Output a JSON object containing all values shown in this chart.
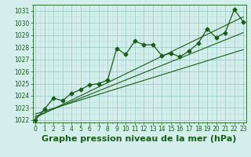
{
  "title": "Graphe pression niveau de la mer (hPa)",
  "x_values": [
    0,
    1,
    2,
    3,
    4,
    5,
    6,
    7,
    8,
    9,
    10,
    11,
    12,
    13,
    14,
    15,
    16,
    17,
    18,
    19,
    20,
    21,
    22,
    23
  ],
  "y_values": [
    1022.0,
    1022.9,
    1023.8,
    1023.6,
    1024.2,
    1024.5,
    1024.9,
    1025.0,
    1025.3,
    1027.9,
    1027.4,
    1028.5,
    1028.2,
    1028.2,
    1027.3,
    1027.5,
    1027.2,
    1027.7,
    1028.3,
    1029.5,
    1028.8,
    1029.2,
    1031.1,
    1030.1
  ],
  "trend1_x": [
    0,
    23
  ],
  "trend1_y": [
    1022.2,
    1030.5
  ],
  "trend2_x": [
    0,
    23
  ],
  "trend2_y": [
    1022.5,
    1027.8
  ],
  "trend3_x": [
    0,
    23
  ],
  "trend3_y": [
    1022.3,
    1029.2
  ],
  "ylim": [
    1021.8,
    1031.5
  ],
  "yticks": [
    1022,
    1023,
    1024,
    1025,
    1026,
    1027,
    1028,
    1029,
    1030,
    1031
  ],
  "xticks": [
    0,
    1,
    2,
    3,
    4,
    5,
    6,
    7,
    8,
    9,
    10,
    11,
    12,
    13,
    14,
    15,
    16,
    17,
    18,
    19,
    20,
    21,
    22,
    23
  ],
  "line_color": "#1a5c1a",
  "bg_color": "#d4eeeb",
  "grid_major_color": "#9eccc8",
  "grid_minor_color": "#b8ddd9",
  "title_fontsize": 8.5,
  "marker": "D",
  "marker_size": 2.5,
  "tick_fontsize": 5.5,
  "xlabel_fontsize": 8
}
